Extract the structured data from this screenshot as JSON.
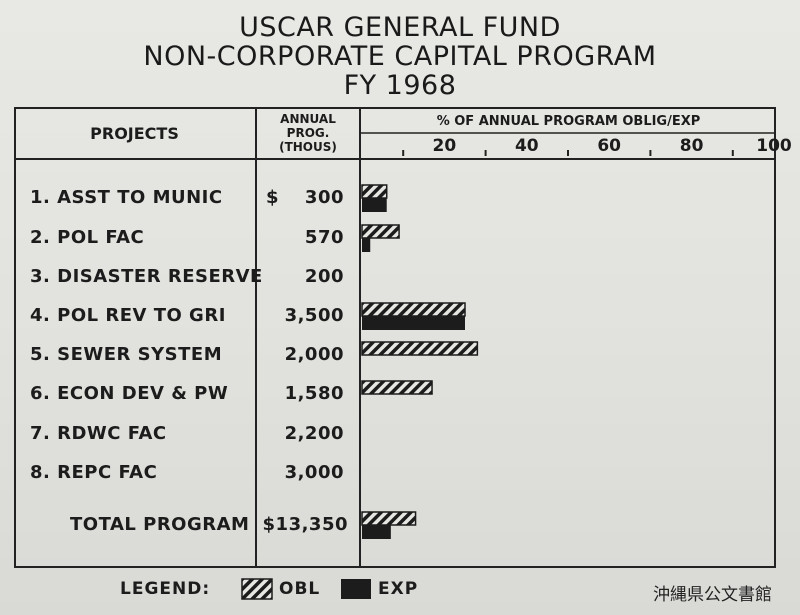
{
  "title_lines": [
    "USCAR GENERAL FUND",
    "NON-CORPORATE CAPITAL PROGRAM",
    "FY 1968"
  ],
  "headers": {
    "projects": "PROJECTS",
    "annual_lines": [
      "ANNUAL",
      "PROG.",
      "(THOUS)"
    ],
    "percent": "% OF ANNUAL PROGRAM OBLIG/EXP"
  },
  "currency_symbol": "$",
  "rows": [
    {
      "label": "1. ASST TO MUNIC",
      "value": "300"
    },
    {
      "label": "2. POL FAC",
      "value": "570"
    },
    {
      "label": "3. DISASTER RESERVE",
      "value": "200"
    },
    {
      "label": "4. POL REV TO GRI",
      "value": "3,500"
    },
    {
      "label": "5. SEWER SYSTEM",
      "value": "2,000"
    },
    {
      "label": "6. ECON DEV & PW",
      "value": "1,580"
    },
    {
      "label": "7. RDWC FAC",
      "value": "2,200"
    },
    {
      "label": "8. REPC FAC",
      "value": "3,000"
    },
    {
      "label": "TOTAL PROGRAM",
      "value": "$13,350"
    }
  ],
  "legend": {
    "title": "LEGEND:",
    "obl": "OBL",
    "exp": "EXP"
  },
  "watermark": "沖縄県公文書館",
  "chart_data": {
    "type": "bar",
    "orientation": "horizontal",
    "xlabel": "% OF ANNUAL PROGRAM OBLIG/EXP",
    "xlim": [
      0,
      100
    ],
    "ticks": [
      20,
      40,
      60,
      80,
      100
    ],
    "categories": [
      "1. ASST TO MUNIC",
      "2. POL FAC",
      "3. DISASTER RESERVE",
      "4. POL REV TO GRI",
      "5. SEWER SYSTEM",
      "6. ECON DEV & PW",
      "7. RDWC FAC",
      "8. REPC FAC",
      "TOTAL PROGRAM"
    ],
    "series": [
      {
        "name": "OBL",
        "pattern": "hatched",
        "values": [
          6,
          9,
          0,
          25,
          28,
          17,
          0,
          0,
          13
        ]
      },
      {
        "name": "EXP",
        "pattern": "solid",
        "values": [
          6,
          2,
          0,
          25,
          0,
          0,
          0,
          0,
          7
        ]
      }
    ],
    "colors": {
      "ink": "#1c1c1c",
      "paper": "#e6e6e2"
    }
  }
}
